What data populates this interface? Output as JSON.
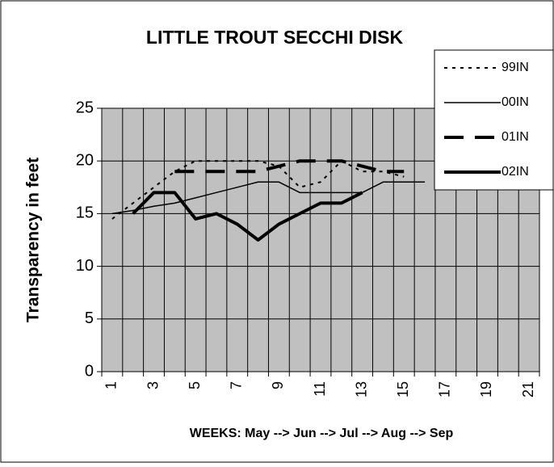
{
  "chart_data": {
    "type": "line",
    "title": "LITTLE TROUT SECCHI DISK",
    "y_label": "Transparency in feet",
    "x_label": "WEEKS:  May --> Jun --> Jul --> Aug --> Sep",
    "categories": [
      "1",
      null,
      "3",
      null,
      "5",
      null,
      "7",
      null,
      "9",
      null,
      "11",
      null,
      "13",
      null,
      "15",
      null,
      "17",
      null,
      "19",
      null,
      "21"
    ],
    "ylim": [
      0,
      25
    ],
    "yticks": [
      0,
      5,
      10,
      15,
      20,
      25
    ],
    "grid": true,
    "legend": "top-right",
    "series": [
      {
        "name": "99IN",
        "color": "#000000",
        "line_style": "dotted",
        "values": [
          14.5,
          16,
          17.5,
          19,
          20,
          20,
          20,
          20,
          19.5,
          17.5,
          18,
          20,
          19,
          19,
          18.5,
          null,
          null,
          null,
          null,
          null,
          null
        ]
      },
      {
        "name": "00IN",
        "color": "#000000",
        "line_style": "thin",
        "values": [
          15,
          15.3,
          15.7,
          16,
          16.5,
          17,
          17.5,
          18,
          18,
          17,
          17,
          17,
          17,
          18,
          18,
          18,
          null,
          null,
          null,
          null,
          null
        ]
      },
      {
        "name": "01IN",
        "color": "#000000",
        "line_style": "dashed",
        "values": [
          null,
          null,
          null,
          19,
          19,
          19,
          19,
          19,
          19.5,
          20,
          20,
          20,
          19.5,
          19,
          19,
          null,
          null,
          null,
          null,
          null,
          null
        ]
      },
      {
        "name": "02IN",
        "color": "#000000",
        "line_style": "thick",
        "values": [
          null,
          15,
          17,
          17,
          14.5,
          15,
          14,
          12.5,
          14,
          15,
          16,
          16,
          17,
          null,
          null,
          null,
          null,
          null,
          null,
          null,
          null
        ]
      }
    ]
  }
}
